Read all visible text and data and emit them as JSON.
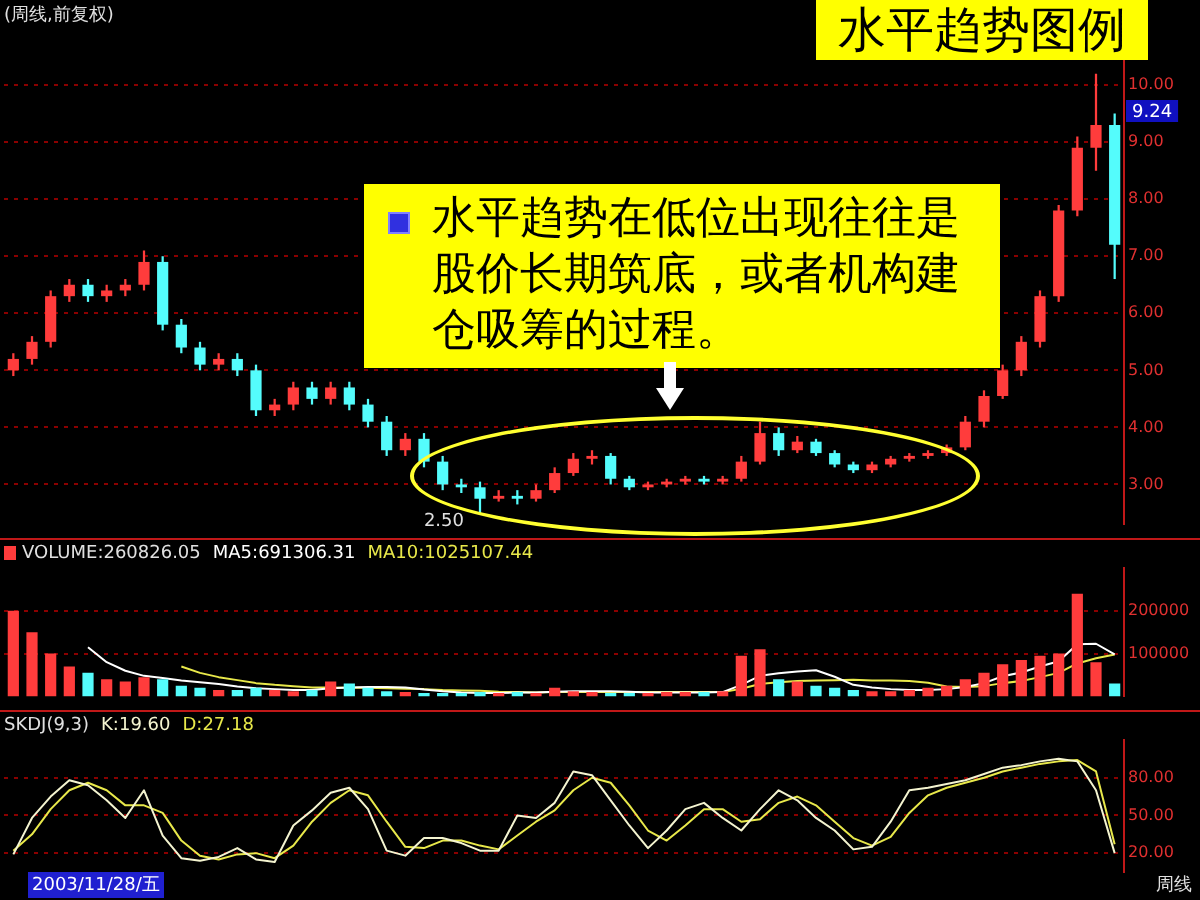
{
  "chart_data": [
    {
      "type": "candlestick",
      "title": "水平趋势图例",
      "subtitle": "(周线,前复权)",
      "categories": [
        null,
        null,
        null,
        null,
        null,
        null,
        null,
        null,
        null,
        null,
        null,
        null,
        null,
        null,
        null,
        null,
        null,
        null,
        null,
        null,
        null,
        null,
        null,
        null,
        null,
        null,
        null,
        null,
        null,
        null,
        null,
        null,
        null,
        null,
        null,
        null,
        null,
        null,
        null,
        null,
        null,
        null,
        null,
        null,
        null,
        null,
        null,
        null,
        null,
        null,
        null,
        null,
        null,
        null,
        null,
        null,
        null,
        null,
        null,
        null
      ],
      "ohlc": [
        [
          5.0,
          5.3,
          4.9,
          5.2
        ],
        [
          5.2,
          5.6,
          5.1,
          5.5
        ],
        [
          5.5,
          6.4,
          5.4,
          6.3
        ],
        [
          6.3,
          6.6,
          6.2,
          6.5
        ],
        [
          6.5,
          6.6,
          6.2,
          6.3
        ],
        [
          6.3,
          6.5,
          6.2,
          6.4
        ],
        [
          6.4,
          6.6,
          6.3,
          6.5
        ],
        [
          6.5,
          7.1,
          6.4,
          6.9
        ],
        [
          6.9,
          7.0,
          5.7,
          5.8
        ],
        [
          5.8,
          5.9,
          5.3,
          5.4
        ],
        [
          5.4,
          5.5,
          5.0,
          5.1
        ],
        [
          5.1,
          5.3,
          5.0,
          5.2
        ],
        [
          5.2,
          5.3,
          4.9,
          5.0
        ],
        [
          5.0,
          5.1,
          4.2,
          4.3
        ],
        [
          4.3,
          4.5,
          4.2,
          4.4
        ],
        [
          4.4,
          4.8,
          4.3,
          4.7
        ],
        [
          4.7,
          4.8,
          4.4,
          4.5
        ],
        [
          4.5,
          4.8,
          4.4,
          4.7
        ],
        [
          4.7,
          4.8,
          4.3,
          4.4
        ],
        [
          4.4,
          4.5,
          4.0,
          4.1
        ],
        [
          4.1,
          4.2,
          3.5,
          3.6
        ],
        [
          3.6,
          3.9,
          3.5,
          3.8
        ],
        [
          3.8,
          3.9,
          3.3,
          3.4
        ],
        [
          3.4,
          3.5,
          2.9,
          3.0
        ],
        [
          3.0,
          3.1,
          2.85,
          2.95
        ],
        [
          2.95,
          3.05,
          2.5,
          2.75
        ],
        [
          2.75,
          2.9,
          2.7,
          2.8
        ],
        [
          2.8,
          2.9,
          2.65,
          2.75
        ],
        [
          2.75,
          3.0,
          2.7,
          2.9
        ],
        [
          2.9,
          3.3,
          2.85,
          3.2
        ],
        [
          3.2,
          3.55,
          3.15,
          3.45
        ],
        [
          3.45,
          3.6,
          3.35,
          3.5
        ],
        [
          3.5,
          3.55,
          3.0,
          3.1
        ],
        [
          3.1,
          3.15,
          2.9,
          2.95
        ],
        [
          2.95,
          3.05,
          2.9,
          3.0
        ],
        [
          3.0,
          3.1,
          2.95,
          3.05
        ],
        [
          3.05,
          3.15,
          3.0,
          3.1
        ],
        [
          3.1,
          3.15,
          3.0,
          3.05
        ],
        [
          3.05,
          3.15,
          3.0,
          3.1
        ],
        [
          3.1,
          3.5,
          3.05,
          3.4
        ],
        [
          3.4,
          4.1,
          3.35,
          3.9
        ],
        [
          3.9,
          4.0,
          3.5,
          3.6
        ],
        [
          3.6,
          3.85,
          3.55,
          3.75
        ],
        [
          3.75,
          3.8,
          3.5,
          3.55
        ],
        [
          3.55,
          3.6,
          3.3,
          3.35
        ],
        [
          3.35,
          3.4,
          3.2,
          3.25
        ],
        [
          3.25,
          3.4,
          3.2,
          3.35
        ],
        [
          3.35,
          3.5,
          3.3,
          3.45
        ],
        [
          3.45,
          3.55,
          3.4,
          3.5
        ],
        [
          3.5,
          3.6,
          3.45,
          3.55
        ],
        [
          3.55,
          3.7,
          3.5,
          3.65
        ],
        [
          3.65,
          4.2,
          3.6,
          4.1
        ],
        [
          4.1,
          4.65,
          4.0,
          4.55
        ],
        [
          4.55,
          5.1,
          4.5,
          5.0
        ],
        [
          5.0,
          5.6,
          4.9,
          5.5
        ],
        [
          5.5,
          6.4,
          5.4,
          6.3
        ],
        [
          6.3,
          7.9,
          6.2,
          7.8
        ],
        [
          7.8,
          9.1,
          7.7,
          8.9
        ],
        [
          8.9,
          10.2,
          8.5,
          9.3
        ],
        [
          9.3,
          9.5,
          6.6,
          7.2
        ]
      ],
      "colors": [
        "#ff3c3c",
        "#ff3c3c",
        "#ff3c3c",
        "#ff3c3c",
        "#54fcfc",
        "#ff3c3c",
        "#ff3c3c",
        "#ff3c3c",
        "#54fcfc",
        "#54fcfc",
        "#54fcfc",
        "#ff3c3c",
        "#54fcfc",
        "#54fcfc",
        "#ff3c3c",
        "#ff3c3c",
        "#54fcfc",
        "#ff3c3c",
        "#54fcfc",
        "#54fcfc",
        "#54fcfc",
        "#ff3c3c",
        "#54fcfc",
        "#54fcfc",
        "#54fcfc",
        "#54fcfc",
        "#ff3c3c",
        "#54fcfc",
        "#ff3c3c",
        "#ff3c3c",
        "#ff3c3c",
        "#ff3c3c",
        "#54fcfc",
        "#54fcfc",
        "#ff3c3c",
        "#ff3c3c",
        "#ff3c3c",
        "#54fcfc",
        "#ff3c3c",
        "#ff3c3c",
        "#ff3c3c",
        "#54fcfc",
        "#ff3c3c",
        "#54fcfc",
        "#54fcfc",
        "#54fcfc",
        "#ff3c3c",
        "#ff3c3c",
        "#ff3c3c",
        "#ff3c3c",
        "#ff3c3c",
        "#ff3c3c",
        "#ff3c3c",
        "#ff3c3c",
        "#ff3c3c",
        "#ff3c3c",
        "#ff3c3c",
        "#ff3c3c",
        "#ff3c3c",
        "#54fcfc"
      ],
      "ylim": [
        2.3,
        11.0
      ],
      "yticks": [
        {
          "value": 3,
          "label": "3.00"
        },
        {
          "value": 4,
          "label": "4.00"
        },
        {
          "value": 5,
          "label": "5.00"
        },
        {
          "value": 6,
          "label": "6.00"
        },
        {
          "value": 7,
          "label": "7.00"
        },
        {
          "value": 8,
          "label": "8.00"
        },
        {
          "value": 9,
          "label": "9.00"
        },
        {
          "value": 10,
          "label": "10.00"
        }
      ],
      "grid": "y",
      "tick_labels": "y",
      "annotations": [
        "水平趋势在低位出现往往是股价长期筑底，或者机构建仓吸筹的过程。",
        "2.50",
        "9.24"
      ]
    },
    {
      "type": "bar",
      "categories": [
        null,
        null,
        null,
        null,
        null,
        null,
        null,
        null,
        null,
        null,
        null,
        null,
        null,
        null,
        null,
        null,
        null,
        null,
        null,
        null,
        null,
        null,
        null,
        null,
        null,
        null,
        null,
        null,
        null,
        null,
        null,
        null,
        null,
        null,
        null,
        null,
        null,
        null,
        null,
        null,
        null,
        null,
        null,
        null,
        null,
        null,
        null,
        null,
        null,
        null,
        null,
        null,
        null,
        null,
        null,
        null,
        null,
        null,
        null,
        null
      ],
      "series": [
        {
          "name": "VOLUME:260826.05",
          "type": "bar",
          "colors": [
            "#ff3c3c",
            "#ff3c3c",
            "#ff3c3c",
            "#ff3c3c",
            "#54fcfc",
            "#ff3c3c",
            "#ff3c3c",
            "#ff3c3c",
            "#54fcfc",
            "#54fcfc",
            "#54fcfc",
            "#ff3c3c",
            "#54fcfc",
            "#54fcfc",
            "#ff3c3c",
            "#ff3c3c",
            "#54fcfc",
            "#ff3c3c",
            "#54fcfc",
            "#54fcfc",
            "#54fcfc",
            "#ff3c3c",
            "#54fcfc",
            "#54fcfc",
            "#54fcfc",
            "#54fcfc",
            "#ff3c3c",
            "#54fcfc",
            "#ff3c3c",
            "#ff3c3c",
            "#ff3c3c",
            "#ff3c3c",
            "#54fcfc",
            "#54fcfc",
            "#ff3c3c",
            "#ff3c3c",
            "#ff3c3c",
            "#54fcfc",
            "#ff3c3c",
            "#ff3c3c",
            "#ff3c3c",
            "#54fcfc",
            "#ff3c3c",
            "#54fcfc",
            "#54fcfc",
            "#54fcfc",
            "#ff3c3c",
            "#ff3c3c",
            "#ff3c3c",
            "#ff3c3c",
            "#ff3c3c",
            "#ff3c3c",
            "#ff3c3c",
            "#ff3c3c",
            "#ff3c3c",
            "#ff3c3c",
            "#ff3c3c",
            "#ff3c3c",
            "#ff3c3c",
            "#54fcfc"
          ],
          "values": [
            200000,
            150000,
            100000,
            70000,
            55000,
            40000,
            35000,
            45000,
            40000,
            25000,
            20000,
            15000,
            15000,
            20000,
            15000,
            12000,
            15000,
            35000,
            30000,
            20000,
            12000,
            10000,
            8000,
            8000,
            8000,
            10000,
            8000,
            10000,
            8000,
            20000,
            12000,
            10000,
            8000,
            8000,
            8000,
            10000,
            10000,
            10000,
            12000,
            95000,
            110000,
            40000,
            35000,
            25000,
            20000,
            15000,
            12000,
            12000,
            15000,
            20000,
            25000,
            40000,
            55000,
            75000,
            85000,
            95000,
            100000,
            240000,
            80000,
            30000
          ]
        },
        {
          "name": "MA5:691306.31",
          "type": "line",
          "color": "#ffffff",
          "values": [
            null,
            null,
            null,
            null,
            115000,
            80000,
            60000,
            48000,
            43000,
            37000,
            33000,
            29000,
            23000,
            19000,
            17000,
            15000,
            15000,
            19000,
            21000,
            22000,
            22000,
            21000,
            16000,
            12000,
            9000,
            8000,
            8000,
            9000,
            9000,
            11000,
            12000,
            12000,
            12000,
            11000,
            9000,
            9000,
            9000,
            9000,
            10000,
            27000,
            48000,
            54000,
            58000,
            61000,
            46000,
            27000,
            21000,
            17000,
            15000,
            15000,
            17000,
            22000,
            31000,
            47000,
            56000,
            70000,
            82000,
            122000,
            123000,
            98000
          ]
        },
        {
          "name": "MA10:1025107.44",
          "type": "line",
          "color": "#e8e84a",
          "values": [
            null,
            null,
            null,
            null,
            null,
            null,
            null,
            null,
            null,
            70000,
            55000,
            45000,
            38000,
            31000,
            27000,
            24000,
            21000,
            21000,
            20000,
            20000,
            19000,
            18000,
            17000,
            15000,
            14000,
            13000,
            11000,
            10000,
            9000,
            10000,
            10000,
            10000,
            10000,
            10000,
            10000,
            10000,
            10000,
            10000,
            10000,
            18000,
            29000,
            33000,
            36000,
            37000,
            38000,
            39000,
            37000,
            37000,
            36000,
            32000,
            23000,
            22000,
            24000,
            31000,
            36000,
            45000,
            55000,
            77000,
            89000,
            98000
          ]
        }
      ],
      "ylim": [
        0,
        300000
      ],
      "yticks": [
        100000,
        200000
      ],
      "grid": "y",
      "tick_labels": "y",
      "legend": "top left",
      "marker": "none"
    },
    {
      "type": "line",
      "title": "SKDJ(9,3)",
      "categories": [
        null,
        null,
        null,
        null,
        null,
        null,
        null,
        null,
        null,
        null,
        null,
        null,
        null,
        null,
        null,
        null,
        null,
        null,
        null,
        null,
        null,
        null,
        null,
        null,
        null,
        null,
        null,
        null,
        null,
        null,
        null,
        null,
        null,
        null,
        null,
        null,
        null,
        null,
        null,
        null,
        null,
        null,
        null,
        null,
        null,
        null,
        null,
        null,
        null,
        null,
        null,
        null,
        null,
        null,
        null,
        null,
        null,
        null,
        null,
        null
      ],
      "series": [
        {
          "name": "K:19.60",
          "color": "#f4f4d0",
          "values": [
            19,
            48,
            65,
            78,
            74,
            62,
            48,
            70,
            34,
            16,
            14,
            17,
            24,
            15,
            13,
            42,
            54,
            68,
            72,
            55,
            22,
            18,
            32,
            32,
            28,
            22,
            22,
            50,
            48,
            60,
            85,
            82,
            62,
            42,
            24,
            38,
            55,
            60,
            48,
            38,
            55,
            70,
            62,
            48,
            38,
            23,
            25,
            45,
            70,
            72,
            75,
            78,
            83,
            88,
            90,
            93,
            95,
            93,
            70,
            20
          ]
        },
        {
          "name": "D:27.18",
          "color": "#e8e84a",
          "values": [
            22,
            35,
            55,
            70,
            76,
            70,
            58,
            58,
            52,
            30,
            18,
            15,
            19,
            20,
            16,
            26,
            45,
            60,
            70,
            66,
            45,
            25,
            24,
            30,
            30,
            26,
            23,
            34,
            45,
            54,
            70,
            80,
            76,
            58,
            38,
            30,
            42,
            55,
            55,
            45,
            47,
            60,
            65,
            58,
            45,
            32,
            26,
            33,
            52,
            66,
            72,
            76,
            80,
            85,
            88,
            91,
            93,
            94,
            85,
            27
          ]
        }
      ],
      "ylim": [
        5,
        110
      ],
      "yticks": [
        {
          "value": 20,
          "label": "20.00"
        },
        {
          "value": 50,
          "label": "50.00"
        },
        {
          "value": 80,
          "label": "80.00"
        }
      ],
      "grid": "y",
      "tick_labels": "y",
      "legend": "top left",
      "marker": "none",
      "annotations": [
        "2003/11/28/五",
        "周线"
      ]
    }
  ]
}
